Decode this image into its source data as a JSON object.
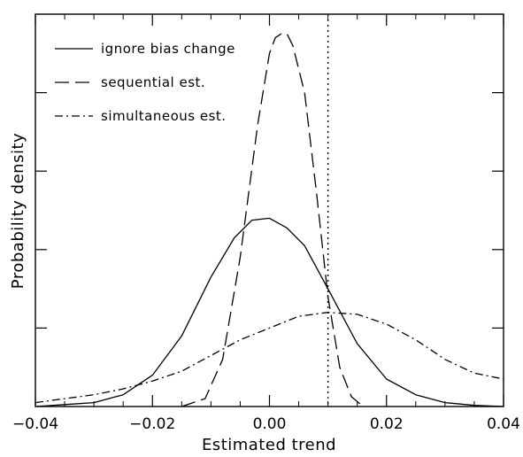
{
  "chart_data": {
    "type": "line",
    "title": "",
    "xlabel": "Estimated trend",
    "ylabel": "Probability density",
    "xlim": [
      -0.04,
      0.04
    ],
    "ylim": [
      0,
      1.0
    ],
    "x_ticks": [
      -0.04,
      -0.02,
      0.0,
      0.02,
      0.04
    ],
    "x_tick_labels": [
      "−0.04",
      "−0.02",
      "0.00",
      "0.02",
      "0.04"
    ],
    "y_tick_labels_shown": false,
    "grid": false,
    "legend_position": "top-left",
    "reference_line": {
      "x": 0.01,
      "style": "dotted"
    },
    "series": [
      {
        "name": "ignore bias change",
        "style": "solid",
        "points": [
          [
            -0.04,
            0.0
          ],
          [
            -0.035,
            0.005
          ],
          [
            -0.03,
            0.01
          ],
          [
            -0.025,
            0.03
          ],
          [
            -0.02,
            0.08
          ],
          [
            -0.015,
            0.18
          ],
          [
            -0.01,
            0.33
          ],
          [
            -0.006,
            0.43
          ],
          [
            -0.003,
            0.475
          ],
          [
            0.0,
            0.48
          ],
          [
            0.003,
            0.455
          ],
          [
            0.006,
            0.41
          ],
          [
            0.01,
            0.3
          ],
          [
            0.015,
            0.16
          ],
          [
            0.02,
            0.07
          ],
          [
            0.025,
            0.03
          ],
          [
            0.03,
            0.01
          ],
          [
            0.035,
            0.003
          ],
          [
            0.04,
            0.0
          ]
        ]
      },
      {
        "name": "sequential est.",
        "style": "dashed",
        "points": [
          [
            -0.015,
            0.0
          ],
          [
            -0.011,
            0.02
          ],
          [
            -0.008,
            0.12
          ],
          [
            -0.005,
            0.38
          ],
          [
            -0.002,
            0.72
          ],
          [
            0.0,
            0.9
          ],
          [
            0.001,
            0.94
          ],
          [
            0.002,
            0.95
          ],
          [
            0.003,
            0.95
          ],
          [
            0.004,
            0.92
          ],
          [
            0.006,
            0.8
          ],
          [
            0.008,
            0.55
          ],
          [
            0.01,
            0.28
          ],
          [
            0.012,
            0.1
          ],
          [
            0.014,
            0.025
          ],
          [
            0.016,
            0.0
          ]
        ]
      },
      {
        "name": "simultaneous est.",
        "style": "dash-dot",
        "points": [
          [
            -0.04,
            0.01
          ],
          [
            -0.035,
            0.02
          ],
          [
            -0.03,
            0.03
          ],
          [
            -0.025,
            0.045
          ],
          [
            -0.02,
            0.065
          ],
          [
            -0.015,
            0.09
          ],
          [
            -0.01,
            0.13
          ],
          [
            -0.005,
            0.17
          ],
          [
            0.0,
            0.2
          ],
          [
            0.005,
            0.23
          ],
          [
            0.01,
            0.24
          ],
          [
            0.015,
            0.235
          ],
          [
            0.02,
            0.21
          ],
          [
            0.025,
            0.17
          ],
          [
            0.03,
            0.12
          ],
          [
            0.035,
            0.085
          ],
          [
            0.04,
            0.07
          ]
        ]
      }
    ]
  }
}
